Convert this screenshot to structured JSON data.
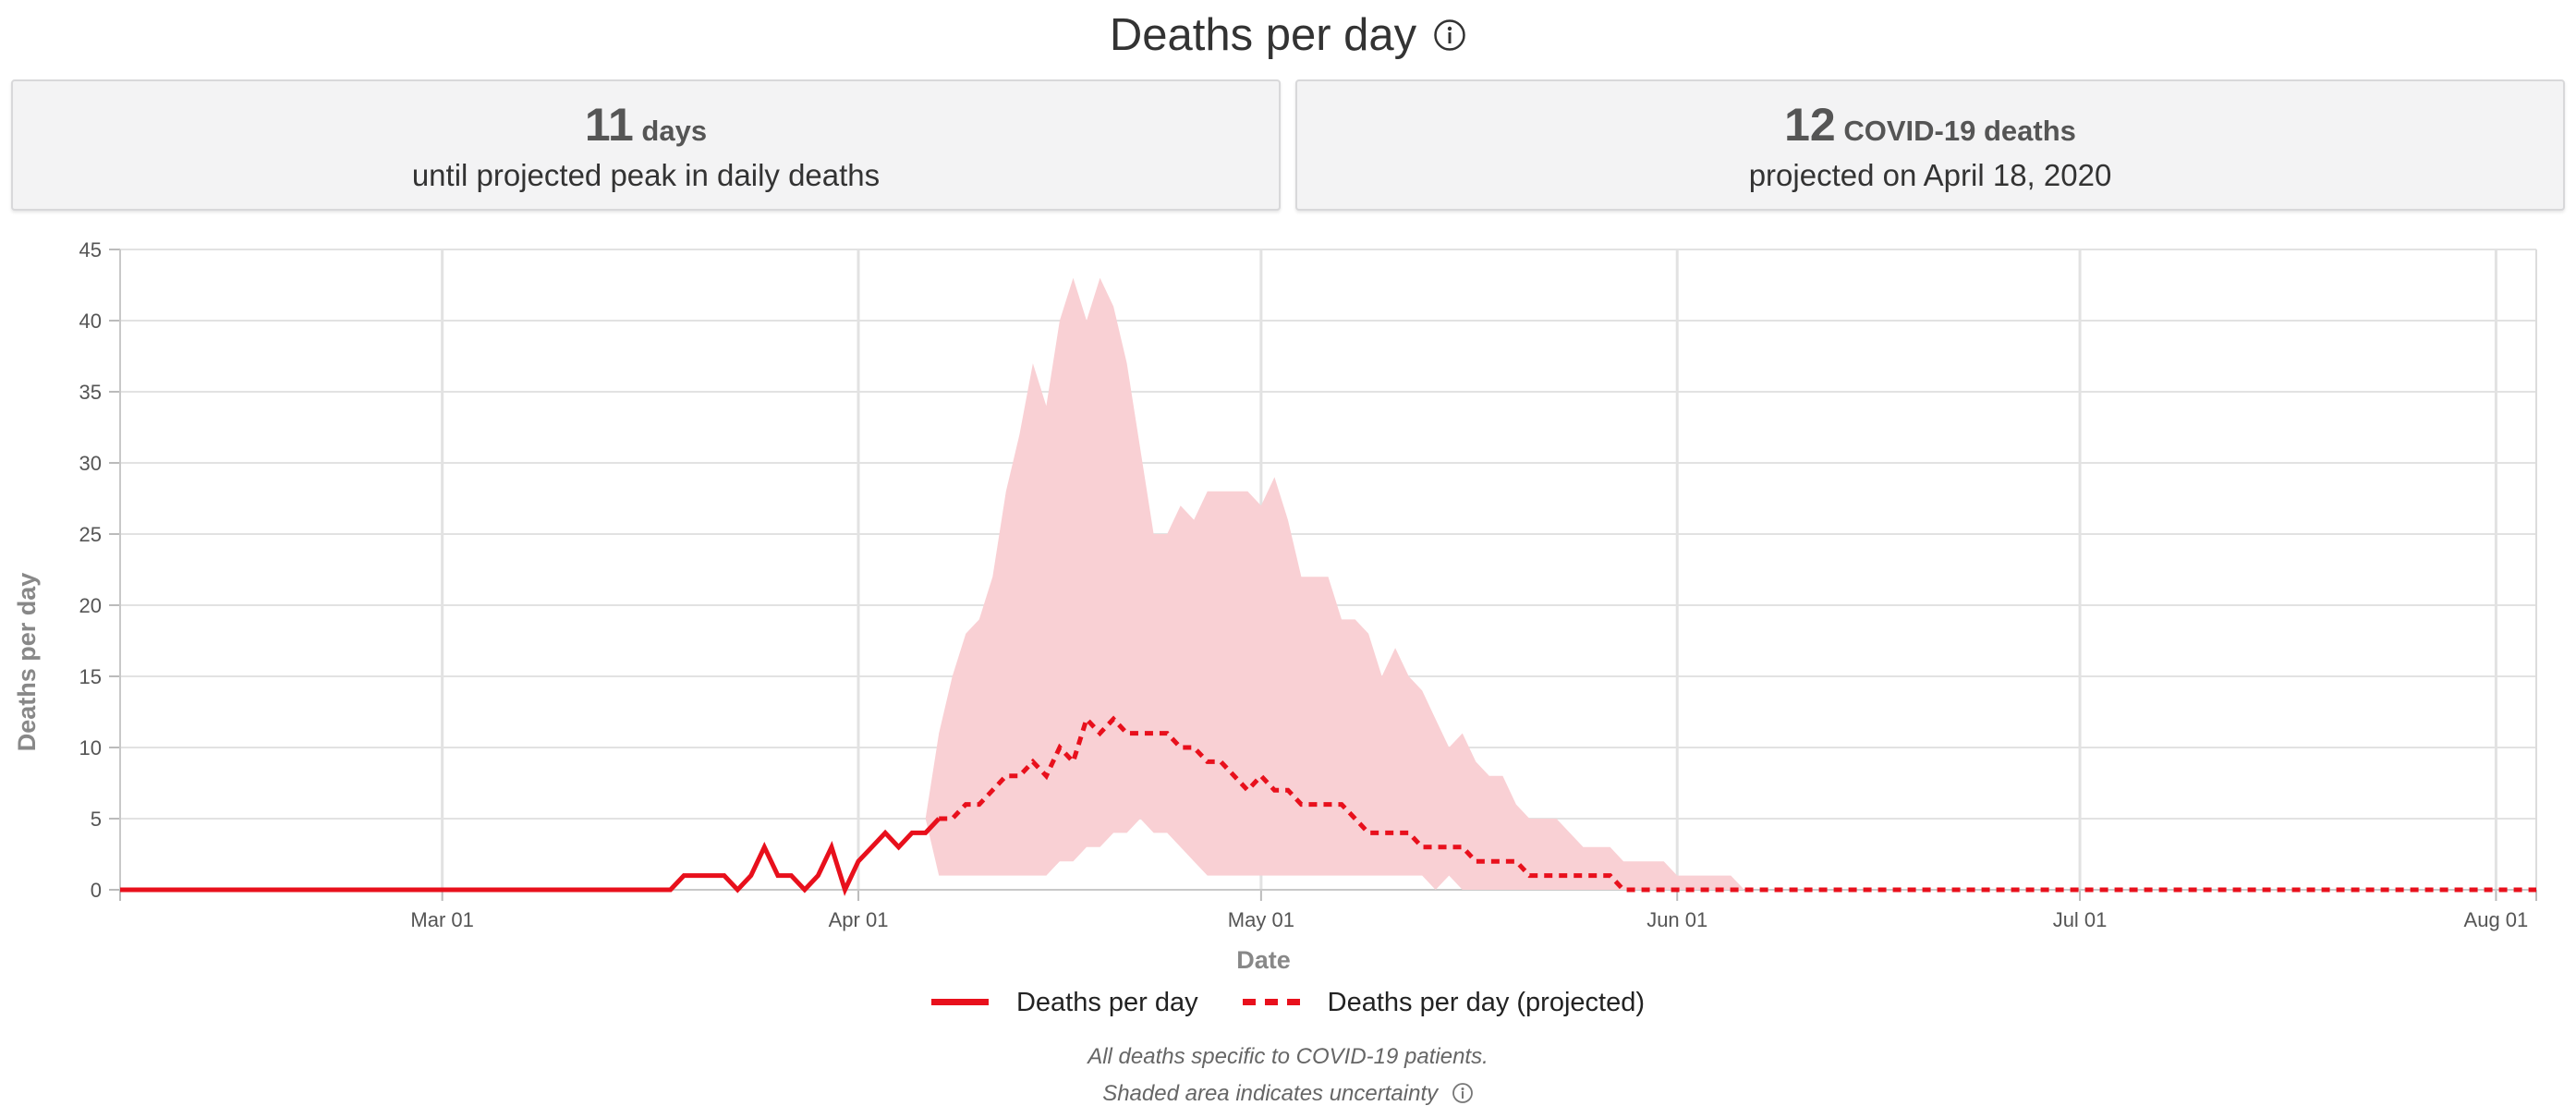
{
  "title": "Deaths per day",
  "cards": {
    "left": {
      "value": "11",
      "unit": "days",
      "caption": "until projected peak in daily deaths"
    },
    "right": {
      "value": "12",
      "unit": "COVID-19 deaths",
      "caption": "projected on April 18, 2020"
    }
  },
  "legend": {
    "actual": "Deaths per day",
    "projected": "Deaths per day (projected)"
  },
  "notes": {
    "line1": "All deaths specific to COVID-19 patients.",
    "line2": "Shaded area indicates uncertainty"
  },
  "colors": {
    "line": "#e8101c",
    "band": "#f9d0d4",
    "grid": "#e2e2e2",
    "axis_text": "#555555",
    "axis_label": "#888888"
  },
  "chart_data": {
    "type": "line",
    "xlabel": "Date",
    "ylabel": "Deaths per day",
    "xlim": [
      "2020-02-06",
      "2020-08-04"
    ],
    "ylim": [
      0,
      45
    ],
    "yticks": [
      0,
      5,
      10,
      15,
      20,
      25,
      30,
      35,
      40,
      45
    ],
    "xticks": [
      {
        "date": "2020-03-01",
        "label": "Mar 01"
      },
      {
        "date": "2020-04-01",
        "label": "Apr 01"
      },
      {
        "date": "2020-05-01",
        "label": "May 01"
      },
      {
        "date": "2020-06-01",
        "label": "Jun 01"
      },
      {
        "date": "2020-07-01",
        "label": "Jul 01"
      },
      {
        "date": "2020-08-01",
        "label": "Aug 01"
      }
    ],
    "grid": true,
    "legend_position": "bottom-center",
    "series": [
      {
        "name": "Deaths per day",
        "style": "solid",
        "points": [
          [
            "2020-02-06",
            0
          ],
          [
            "2020-03-18",
            0
          ],
          [
            "2020-03-19",
            1
          ],
          [
            "2020-03-20",
            1
          ],
          [
            "2020-03-21",
            1
          ],
          [
            "2020-03-22",
            1
          ],
          [
            "2020-03-23",
            0
          ],
          [
            "2020-03-24",
            1
          ],
          [
            "2020-03-25",
            3
          ],
          [
            "2020-03-26",
            1
          ],
          [
            "2020-03-27",
            1
          ],
          [
            "2020-03-28",
            0
          ],
          [
            "2020-03-29",
            1
          ],
          [
            "2020-03-30",
            3
          ],
          [
            "2020-03-31",
            0
          ],
          [
            "2020-04-01",
            2
          ],
          [
            "2020-04-02",
            3
          ],
          [
            "2020-04-03",
            4
          ],
          [
            "2020-04-04",
            3
          ],
          [
            "2020-04-05",
            4
          ],
          [
            "2020-04-06",
            4
          ],
          [
            "2020-04-07",
            5
          ]
        ]
      },
      {
        "name": "Deaths per day (projected)",
        "style": "dashed",
        "points": [
          [
            "2020-04-07",
            5
          ],
          [
            "2020-04-08",
            5
          ],
          [
            "2020-04-09",
            6
          ],
          [
            "2020-04-10",
            6
          ],
          [
            "2020-04-11",
            7
          ],
          [
            "2020-04-12",
            8
          ],
          [
            "2020-04-13",
            8
          ],
          [
            "2020-04-14",
            9
          ],
          [
            "2020-04-15",
            8
          ],
          [
            "2020-04-16",
            10
          ],
          [
            "2020-04-17",
            9
          ],
          [
            "2020-04-18",
            12
          ],
          [
            "2020-04-19",
            11
          ],
          [
            "2020-04-20",
            12
          ],
          [
            "2020-04-21",
            11
          ],
          [
            "2020-04-22",
            11
          ],
          [
            "2020-04-23",
            11
          ],
          [
            "2020-04-24",
            11
          ],
          [
            "2020-04-25",
            10
          ],
          [
            "2020-04-26",
            10
          ],
          [
            "2020-04-27",
            9
          ],
          [
            "2020-04-28",
            9
          ],
          [
            "2020-04-29",
            8
          ],
          [
            "2020-04-30",
            7
          ],
          [
            "2020-05-01",
            8
          ],
          [
            "2020-05-02",
            7
          ],
          [
            "2020-05-03",
            7
          ],
          [
            "2020-05-04",
            6
          ],
          [
            "2020-05-05",
            6
          ],
          [
            "2020-05-06",
            6
          ],
          [
            "2020-05-07",
            6
          ],
          [
            "2020-05-08",
            5
          ],
          [
            "2020-05-09",
            4
          ],
          [
            "2020-05-10",
            4
          ],
          [
            "2020-05-11",
            4
          ],
          [
            "2020-05-12",
            4
          ],
          [
            "2020-05-13",
            3
          ],
          [
            "2020-05-14",
            3
          ],
          [
            "2020-05-15",
            3
          ],
          [
            "2020-05-16",
            3
          ],
          [
            "2020-05-17",
            2
          ],
          [
            "2020-05-18",
            2
          ],
          [
            "2020-05-19",
            2
          ],
          [
            "2020-05-20",
            2
          ],
          [
            "2020-05-21",
            1
          ],
          [
            "2020-05-22",
            1
          ],
          [
            "2020-05-23",
            1
          ],
          [
            "2020-05-24",
            1
          ],
          [
            "2020-05-25",
            1
          ],
          [
            "2020-05-26",
            1
          ],
          [
            "2020-05-27",
            1
          ],
          [
            "2020-05-28",
            0
          ],
          [
            "2020-08-04",
            0
          ]
        ]
      }
    ],
    "uncertainty_band": {
      "upper": [
        [
          "2020-04-06",
          5
        ],
        [
          "2020-04-07",
          11
        ],
        [
          "2020-04-08",
          15
        ],
        [
          "2020-04-09",
          18
        ],
        [
          "2020-04-10",
          19
        ],
        [
          "2020-04-11",
          22
        ],
        [
          "2020-04-12",
          28
        ],
        [
          "2020-04-13",
          32
        ],
        [
          "2020-04-14",
          37
        ],
        [
          "2020-04-15",
          34
        ],
        [
          "2020-04-16",
          40
        ],
        [
          "2020-04-17",
          43
        ],
        [
          "2020-04-18",
          40
        ],
        [
          "2020-04-19",
          43
        ],
        [
          "2020-04-20",
          41
        ],
        [
          "2020-04-21",
          37
        ],
        [
          "2020-04-22",
          31
        ],
        [
          "2020-04-23",
          25
        ],
        [
          "2020-04-24",
          25
        ],
        [
          "2020-04-25",
          27
        ],
        [
          "2020-04-26",
          26
        ],
        [
          "2020-04-27",
          28
        ],
        [
          "2020-04-28",
          28
        ],
        [
          "2020-04-29",
          28
        ],
        [
          "2020-04-30",
          28
        ],
        [
          "2020-05-01",
          27
        ],
        [
          "2020-05-02",
          29
        ],
        [
          "2020-05-03",
          26
        ],
        [
          "2020-05-04",
          22
        ],
        [
          "2020-05-05",
          22
        ],
        [
          "2020-05-06",
          22
        ],
        [
          "2020-05-07",
          19
        ],
        [
          "2020-05-08",
          19
        ],
        [
          "2020-05-09",
          18
        ],
        [
          "2020-05-10",
          15
        ],
        [
          "2020-05-11",
          17
        ],
        [
          "2020-05-12",
          15
        ],
        [
          "2020-05-13",
          14
        ],
        [
          "2020-05-14",
          12
        ],
        [
          "2020-05-15",
          10
        ],
        [
          "2020-05-16",
          11
        ],
        [
          "2020-05-17",
          9
        ],
        [
          "2020-05-18",
          8
        ],
        [
          "2020-05-19",
          8
        ],
        [
          "2020-05-20",
          6
        ],
        [
          "2020-05-21",
          5
        ],
        [
          "2020-05-22",
          5
        ],
        [
          "2020-05-23",
          5
        ],
        [
          "2020-05-24",
          4
        ],
        [
          "2020-05-25",
          3
        ],
        [
          "2020-05-26",
          3
        ],
        [
          "2020-05-27",
          3
        ],
        [
          "2020-05-28",
          2
        ],
        [
          "2020-05-29",
          2
        ],
        [
          "2020-05-30",
          2
        ],
        [
          "2020-05-31",
          2
        ],
        [
          "2020-06-01",
          1
        ],
        [
          "2020-06-02",
          1
        ],
        [
          "2020-06-03",
          1
        ],
        [
          "2020-06-04",
          1
        ],
        [
          "2020-06-05",
          1
        ],
        [
          "2020-06-06",
          0
        ]
      ],
      "lower": [
        [
          "2020-04-06",
          5
        ],
        [
          "2020-04-07",
          1
        ],
        [
          "2020-04-14",
          1
        ],
        [
          "2020-04-15",
          1
        ],
        [
          "2020-04-16",
          2
        ],
        [
          "2020-04-17",
          2
        ],
        [
          "2020-04-18",
          3
        ],
        [
          "2020-04-19",
          3
        ],
        [
          "2020-04-20",
          4
        ],
        [
          "2020-04-21",
          4
        ],
        [
          "2020-04-22",
          5
        ],
        [
          "2020-04-23",
          4
        ],
        [
          "2020-04-24",
          4
        ],
        [
          "2020-04-25",
          3
        ],
        [
          "2020-04-26",
          2
        ],
        [
          "2020-04-27",
          1
        ],
        [
          "2020-04-28",
          1
        ],
        [
          "2020-05-13",
          1
        ],
        [
          "2020-05-14",
          0
        ],
        [
          "2020-05-15",
          1
        ],
        [
          "2020-05-16",
          0
        ],
        [
          "2020-06-06",
          0
        ]
      ]
    }
  }
}
